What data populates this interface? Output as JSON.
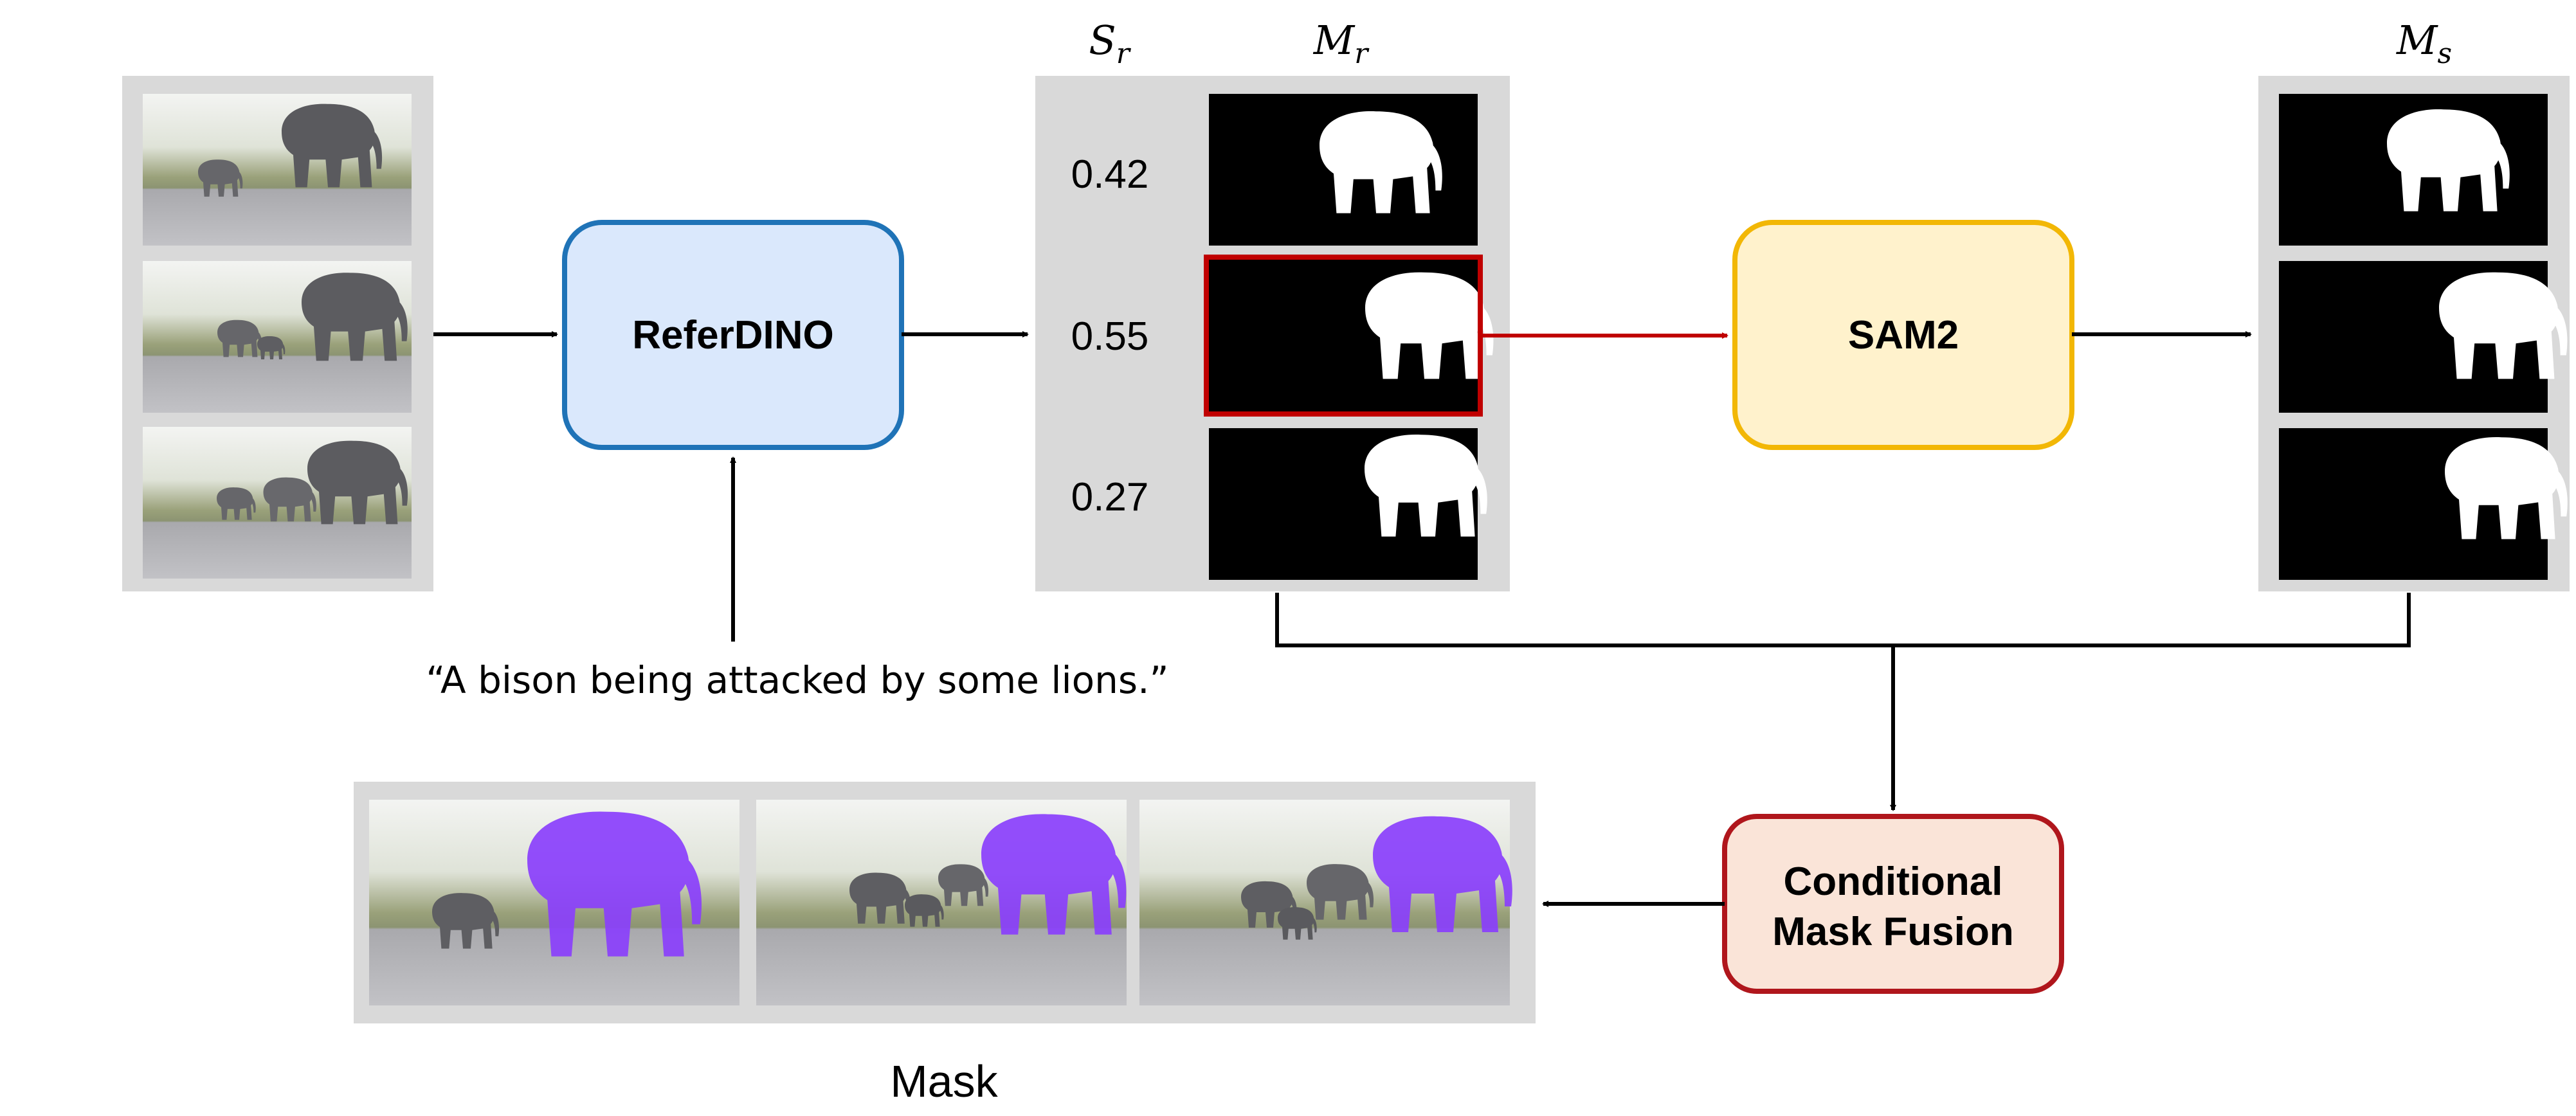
{
  "labels": {
    "scores_header_base": "S",
    "scores_header_sub": "r",
    "ref_masks_header_base": "M",
    "ref_masks_header_sub": "r",
    "sam_masks_header_base": "M",
    "sam_masks_header_sub": "s"
  },
  "scores": [
    "0.42",
    "0.55",
    "0.27"
  ],
  "selected_index": 1,
  "modules": {
    "referdino": "ReferDINO",
    "sam2": "SAM2",
    "fusion_line1": "Conditional",
    "fusion_line2": "Mask Fusion"
  },
  "query_text": "“A bison being attacked by some lions.”",
  "output_label": "Mask",
  "colors": {
    "referdino_fill": "#dae8fc",
    "referdino_stroke": "#1f73b7",
    "sam2_fill": "#fff2cc",
    "sam2_stroke": "#f2b705",
    "fusion_fill": "#fae4d8",
    "fusion_stroke": "#b0161c",
    "highlight": "#c00000",
    "panel_bg": "#d9d9d9",
    "mask_overlay": "#8a3ffc"
  }
}
